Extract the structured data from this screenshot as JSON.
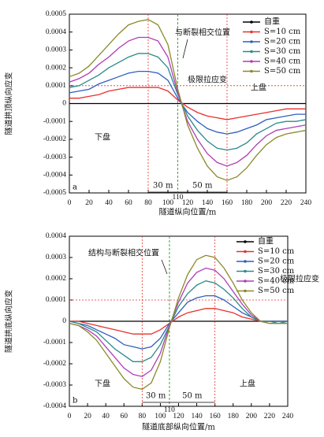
{
  "chart_data": [
    {
      "type": "line",
      "panel": "a",
      "ylabel": "隧道拱顶纵向应变",
      "xlabel": "隧道纵向位置/m",
      "x": [
        0,
        10,
        20,
        30,
        40,
        50,
        60,
        70,
        80,
        90,
        100,
        110,
        120,
        130,
        140,
        150,
        160,
        170,
        180,
        190,
        200,
        210,
        220,
        230,
        240
      ],
      "xlim": [
        0,
        240
      ],
      "xticks": [
        0,
        20,
        40,
        60,
        80,
        100,
        120,
        140,
        160,
        180,
        200,
        220,
        240
      ],
      "ylim": [
        -0.0005,
        0.0005
      ],
      "yticks": [
        0.0005,
        0.0004,
        0.0003,
        0.0002,
        0.0001,
        0,
        -0.0001,
        -0.0002,
        -0.0003,
        -0.0004,
        -0.0005
      ],
      "limit_strain": 0.0001,
      "section_x": [
        80,
        160
      ],
      "fault_x": 110,
      "annotations": [
        "与断裂相交位置",
        "极限拉应变",
        "上盘",
        "下盘",
        "30 m",
        "50 m"
      ],
      "series": [
        {
          "name": "自重",
          "color": "#000000",
          "values": [
            0,
            0,
            0,
            0,
            0,
            0,
            0,
            0,
            0,
            0,
            0,
            0,
            0,
            0,
            0,
            0,
            0,
            0,
            0,
            0,
            0,
            0,
            0,
            0,
            0
          ]
        },
        {
          "name": "S=10 cm",
          "color": "#e8302a",
          "values": [
            3e-05,
            3e-05,
            4e-05,
            5e-05,
            7e-05,
            8e-05,
            9e-05,
            9e-05,
            9e-05,
            9e-05,
            7e-05,
            2e-05,
            -2e-05,
            -5e-05,
            -7e-05,
            -8e-05,
            -9e-05,
            -8e-05,
            -7e-05,
            -6e-05,
            -5e-05,
            -4e-05,
            -3e-05,
            -3e-05,
            -3e-05
          ]
        },
        {
          "name": "S=20 cm",
          "color": "#2e5fbf",
          "values": [
            6e-05,
            7e-05,
            8e-05,
            0.00011,
            0.00013,
            0.00015,
            0.00017,
            0.00018,
            0.00018,
            0.00017,
            0.00013,
            3e-05,
            -5e-05,
            -0.0001,
            -0.00014,
            -0.00016,
            -0.00017,
            -0.00016,
            -0.00014,
            -0.00012,
            -9e-05,
            -8e-05,
            -7e-05,
            -6e-05,
            -6e-05
          ]
        },
        {
          "name": "S=30 cm",
          "color": "#2a8a8a",
          "values": [
            9e-05,
            0.0001,
            0.00013,
            0.00016,
            0.0002,
            0.00023,
            0.00026,
            0.00028,
            0.00028,
            0.00026,
            0.0002,
            5e-05,
            -7e-05,
            -0.00015,
            -0.00021,
            -0.00025,
            -0.00026,
            -0.00025,
            -0.00022,
            -0.00017,
            -0.00014,
            -0.00011,
            -0.0001,
            -0.0001,
            -9e-05
          ]
        },
        {
          "name": "S=40 cm",
          "color": "#b03cb8",
          "values": [
            0.00012,
            0.00014,
            0.00017,
            0.00022,
            0.00026,
            0.00031,
            0.00035,
            0.00037,
            0.00037,
            0.00035,
            0.00026,
            6e-05,
            -0.0001,
            -0.0002,
            -0.00028,
            -0.00033,
            -0.00035,
            -0.00033,
            -0.00029,
            -0.00023,
            -0.00018,
            -0.00015,
            -0.00014,
            -0.00013,
            -0.00012
          ]
        },
        {
          "name": "S=50 cm",
          "color": "#8a8a2a",
          "values": [
            0.00015,
            0.00017,
            0.00021,
            0.00027,
            0.00033,
            0.00039,
            0.00044,
            0.00046,
            0.00047,
            0.00044,
            0.00033,
            8e-05,
            -0.00012,
            -0.00025,
            -0.00035,
            -0.00041,
            -0.00043,
            -0.00041,
            -0.00036,
            -0.00029,
            -0.00023,
            -0.00019,
            -0.00017,
            -0.00016,
            -0.00015
          ]
        }
      ]
    },
    {
      "type": "line",
      "panel": "b",
      "ylabel": "隧道拱底纵向应变",
      "xlabel": "隧道底部纵向位置/m",
      "x": [
        0,
        10,
        20,
        30,
        40,
        50,
        60,
        70,
        80,
        90,
        100,
        110,
        120,
        130,
        140,
        150,
        160,
        170,
        180,
        190,
        200,
        210,
        220,
        230,
        240
      ],
      "xlim": [
        0,
        240
      ],
      "xticks": [
        0,
        20,
        40,
        60,
        80,
        100,
        120,
        140,
        160,
        180,
        200,
        220,
        240
      ],
      "ylim": [
        -0.0004,
        0.0004
      ],
      "yticks": [
        0.0004,
        0.0003,
        0.0002,
        0.0001,
        0,
        -0.0001,
        -0.0002,
        -0.0003,
        -0.0004
      ],
      "limit_strain": 0.0001,
      "section_x": [
        80,
        160
      ],
      "fault_x": 110,
      "annotations": [
        "结构与断裂相交位置",
        "极限拉应变",
        "上盘",
        "下盘",
        "30 m",
        "50 m"
      ],
      "series": [
        {
          "name": "自重",
          "color": "#000000",
          "values": [
            0,
            0,
            0,
            0,
            0,
            0,
            0,
            0,
            0,
            0,
            0,
            0,
            0,
            0,
            0,
            0,
            0,
            0,
            0,
            0,
            0,
            0,
            0,
            0,
            0
          ]
        },
        {
          "name": "S=10 cm",
          "color": "#e8302a",
          "values": [
            0,
            0,
            -1e-05,
            -2e-05,
            -3e-05,
            -4e-05,
            -5e-05,
            -6e-05,
            -6e-05,
            -6e-05,
            -4e-05,
            -1e-05,
            2e-05,
            4e-05,
            5e-05,
            6e-05,
            6e-05,
            5e-05,
            4e-05,
            2e-05,
            1e-05,
            0,
            0,
            0,
            0
          ]
        },
        {
          "name": "S=20 cm",
          "color": "#2e5fbf",
          "values": [
            0,
            -1e-05,
            -2e-05,
            -4e-05,
            -6e-05,
            -8e-05,
            -0.00011,
            -0.00012,
            -0.00013,
            -0.00012,
            -8e-05,
            -1e-05,
            4e-05,
            9e-05,
            0.00011,
            0.00012,
            0.00012,
            0.0001,
            7e-05,
            4e-05,
            2e-05,
            0,
            0,
            0,
            0
          ]
        },
        {
          "name": "S=30 cm",
          "color": "#2a8a8a",
          "values": [
            0,
            -1e-05,
            -3e-05,
            -5e-05,
            -9e-05,
            -0.00013,
            -0.00016,
            -0.00019,
            -0.00019,
            -0.00017,
            -0.00011,
            -2e-05,
            7e-05,
            0.00013,
            0.00017,
            0.00019,
            0.00018,
            0.00015,
            0.00011,
            6e-05,
            2e-05,
            0,
            0,
            -1e-05,
            0
          ]
        },
        {
          "name": "S=40 cm",
          "color": "#b03cb8",
          "values": [
            -1e-05,
            -2e-05,
            -4e-05,
            -7e-05,
            -0.00012,
            -0.00017,
            -0.00022,
            -0.00025,
            -0.00026,
            -0.00023,
            -0.00015,
            -2e-05,
            9e-05,
            0.00018,
            0.00023,
            0.00025,
            0.00024,
            0.0002,
            0.00014,
            8e-05,
            3e-05,
            0,
            -1e-05,
            -1e-05,
            -1e-05
          ]
        },
        {
          "name": "S=50 cm",
          "color": "#8a8a2a",
          "values": [
            -1e-05,
            -2e-05,
            -5e-05,
            -9e-05,
            -0.00015,
            -0.00021,
            -0.00027,
            -0.00031,
            -0.00032,
            -0.00029,
            -0.00019,
            -3e-05,
            0.00011,
            0.00022,
            0.00029,
            0.00031,
            0.0003,
            0.00025,
            0.00018,
            0.0001,
            4e-05,
            0,
            -1e-05,
            -1e-05,
            -1e-05
          ]
        }
      ]
    }
  ]
}
